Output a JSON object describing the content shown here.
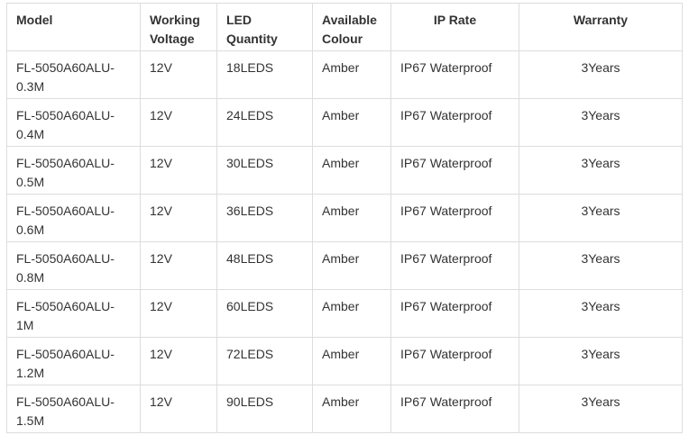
{
  "table": {
    "headers": [
      "Model",
      "Working Voltage",
      "LED Quantity",
      "Available Colour",
      "IP Rate",
      "Warranty"
    ],
    "rows": [
      [
        "FL-5050A60ALU-0.3M",
        "12V",
        "18LEDS",
        "Amber",
        "IP67 Waterproof",
        "3Years"
      ],
      [
        "FL-5050A60ALU-0.4M",
        "12V",
        "24LEDS",
        "Amber",
        "IP67 Waterproof",
        "3Years"
      ],
      [
        "FL-5050A60ALU-0.5M",
        "12V",
        "30LEDS",
        "Amber",
        "IP67 Waterproof",
        "3Years"
      ],
      [
        "FL-5050A60ALU-0.6M",
        "12V",
        "36LEDS",
        "Amber",
        "IP67 Waterproof",
        "3Years"
      ],
      [
        "FL-5050A60ALU-0.8M",
        "12V",
        "48LEDS",
        "Amber",
        "IP67 Waterproof",
        "3Years"
      ],
      [
        "FL-5050A60ALU-1M",
        "12V",
        "60LEDS",
        "Amber",
        "IP67 Waterproof",
        "3Years"
      ],
      [
        "FL-5050A60ALU-1.2M",
        "12V",
        "72LEDS",
        "Amber",
        "IP67 Waterproof",
        "3Years"
      ],
      [
        "FL-5050A60ALU-1.5M",
        "12V",
        "90LEDS",
        "Amber",
        "IP67 Waterproof",
        "3Years"
      ]
    ]
  }
}
